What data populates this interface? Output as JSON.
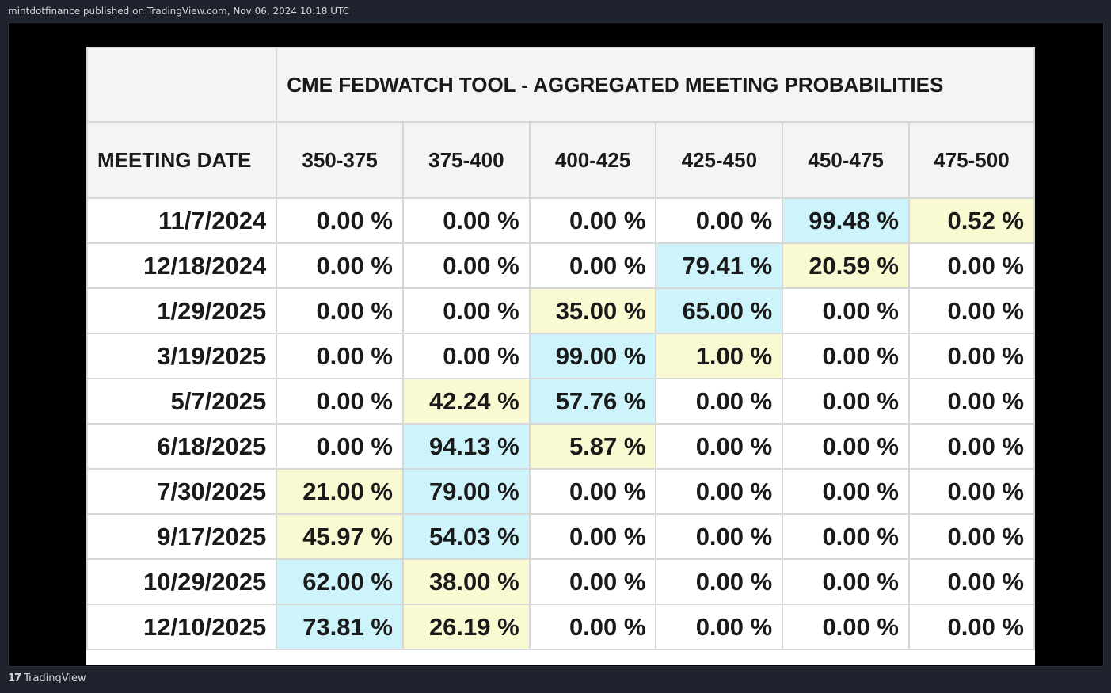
{
  "header": {
    "publish_info": "mintdotfinance published on TradingView.com, Nov 06, 2024 10:18 UTC"
  },
  "footer": {
    "logo_glyph": "17",
    "brand": "TradingView"
  },
  "colors": {
    "highlight_primary": "#ccf4fa",
    "highlight_secondary": "#fafad2"
  },
  "chart_data": {
    "type": "table",
    "title": "CME FEDWATCH TOOL - AGGREGATED MEETING PROBABILITIES",
    "columns": [
      "MEETING DATE",
      "350-375",
      "375-400",
      "400-425",
      "425-450",
      "450-475",
      "475-500"
    ],
    "rows": [
      {
        "date": "11/7/2024",
        "values": [
          "0.00 %",
          "0.00 %",
          "0.00 %",
          "0.00 %",
          "99.48 %",
          "0.52 %"
        ],
        "hl": [
          "",
          "",
          "",
          "",
          "b",
          "y"
        ]
      },
      {
        "date": "12/18/2024",
        "values": [
          "0.00 %",
          "0.00 %",
          "0.00 %",
          "79.41 %",
          "20.59 %",
          "0.00 %"
        ],
        "hl": [
          "",
          "",
          "",
          "b",
          "y",
          ""
        ]
      },
      {
        "date": "1/29/2025",
        "values": [
          "0.00 %",
          "0.00 %",
          "35.00 %",
          "65.00 %",
          "0.00 %",
          "0.00 %"
        ],
        "hl": [
          "",
          "",
          "y",
          "b",
          "",
          ""
        ]
      },
      {
        "date": "3/19/2025",
        "values": [
          "0.00 %",
          "0.00 %",
          "99.00 %",
          "1.00 %",
          "0.00 %",
          "0.00 %"
        ],
        "hl": [
          "",
          "",
          "b",
          "y",
          "",
          ""
        ]
      },
      {
        "date": "5/7/2025",
        "values": [
          "0.00 %",
          "42.24 %",
          "57.76 %",
          "0.00 %",
          "0.00 %",
          "0.00 %"
        ],
        "hl": [
          "",
          "y",
          "b",
          "",
          "",
          ""
        ]
      },
      {
        "date": "6/18/2025",
        "values": [
          "0.00 %",
          "94.13 %",
          "5.87 %",
          "0.00 %",
          "0.00 %",
          "0.00 %"
        ],
        "hl": [
          "",
          "b",
          "y",
          "",
          "",
          ""
        ]
      },
      {
        "date": "7/30/2025",
        "values": [
          "21.00 %",
          "79.00 %",
          "0.00 %",
          "0.00 %",
          "0.00 %",
          "0.00 %"
        ],
        "hl": [
          "y",
          "b",
          "",
          "",
          "",
          ""
        ]
      },
      {
        "date": "9/17/2025",
        "values": [
          "45.97 %",
          "54.03 %",
          "0.00 %",
          "0.00 %",
          "0.00 %",
          "0.00 %"
        ],
        "hl": [
          "y",
          "b",
          "",
          "",
          "",
          ""
        ]
      },
      {
        "date": "10/29/2025",
        "values": [
          "62.00 %",
          "38.00 %",
          "0.00 %",
          "0.00 %",
          "0.00 %",
          "0.00 %"
        ],
        "hl": [
          "b",
          "y",
          "",
          "",
          "",
          ""
        ]
      },
      {
        "date": "12/10/2025",
        "values": [
          "73.81 %",
          "26.19 %",
          "0.00 %",
          "0.00 %",
          "0.00 %",
          "0.00 %"
        ],
        "hl": [
          "b",
          "y",
          "",
          "",
          "",
          ""
        ]
      }
    ]
  }
}
